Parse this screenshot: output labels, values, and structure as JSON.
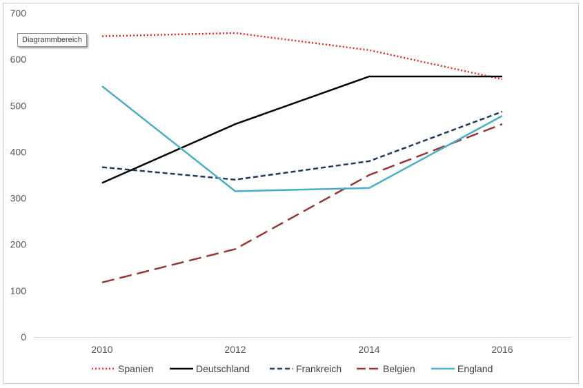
{
  "tooltip": {
    "label": "Diagrammbereich"
  },
  "chart_data": {
    "type": "line",
    "categories": [
      "2010",
      "2012",
      "2014",
      "2016"
    ],
    "ylim": [
      0,
      700
    ],
    "yticks": [
      0,
      100,
      200,
      300,
      400,
      500,
      600,
      700
    ],
    "grid": false,
    "legend": "bottom",
    "series": [
      {
        "name": "Spanien",
        "values": [
          650,
          657,
          620,
          557
        ],
        "color": "#e8262b",
        "style": "dotted"
      },
      {
        "name": "Deutschland",
        "values": [
          333,
          460,
          563,
          563
        ],
        "color": "#000000",
        "style": "solid"
      },
      {
        "name": "Frankreich",
        "values": [
          367,
          340,
          380,
          487
        ],
        "color": "#1f3a5a",
        "style": "dashed"
      },
      {
        "name": "Belgien",
        "values": [
          118,
          190,
          350,
          460
        ],
        "color": "#943634",
        "style": "longdash"
      },
      {
        "name": "England",
        "values": [
          542,
          315,
          322,
          478
        ],
        "color": "#4bacc6",
        "style": "solid"
      }
    ]
  }
}
